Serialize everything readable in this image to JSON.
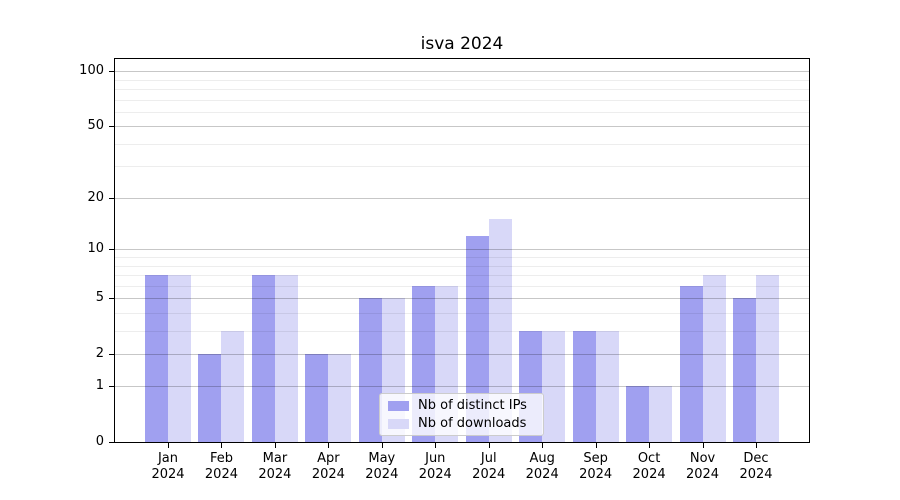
{
  "chart_data": {
    "type": "bar",
    "title": "isva 2024",
    "categories": [
      "Jan",
      "Feb",
      "Mar",
      "Apr",
      "May",
      "Jun",
      "Jul",
      "Aug",
      "Sep",
      "Oct",
      "Nov",
      "Dec"
    ],
    "category_year_line": "2024",
    "series": [
      {
        "name": "Nb of distinct IPs",
        "color": "#a0a0f0",
        "values": [
          7,
          2,
          7,
          2,
          5,
          6,
          12,
          3,
          3,
          1,
          6,
          5
        ]
      },
      {
        "name": "Nb of downloads",
        "color": "#d8d8f8",
        "values": [
          7,
          3,
          7,
          2,
          5,
          6,
          15,
          3,
          3,
          1,
          7,
          7
        ]
      }
    ],
    "xlabel": "",
    "ylabel": "",
    "yscale": "log1p",
    "ylim": [
      0,
      117
    ],
    "yticks": [
      0,
      1,
      2,
      5,
      10,
      20,
      50,
      100
    ],
    "yticks_minor": [
      3,
      4,
      6,
      7,
      8,
      9,
      30,
      40,
      60,
      70,
      80,
      90
    ],
    "grid": "horizontal",
    "legend_position": "lower-center-inside",
    "colors": {
      "grid_major": "rgba(0,0,0,0.22)",
      "grid_minor": "rgba(0,0,0,0.07)",
      "spine": "#000000",
      "text": "#000000",
      "legend_border": "#cccccc"
    }
  }
}
